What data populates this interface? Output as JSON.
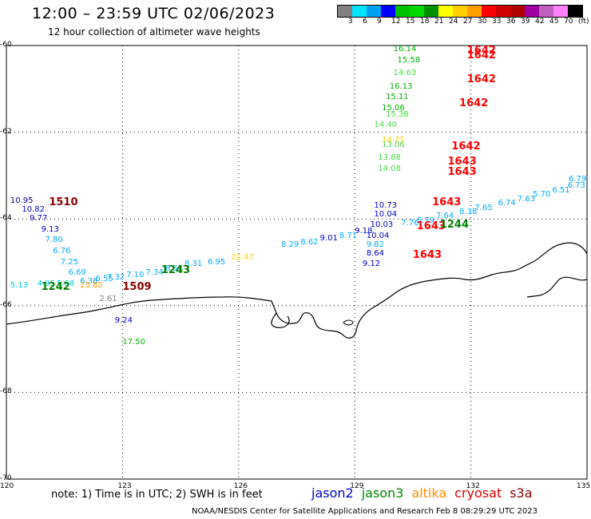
{
  "header": {
    "title": "12:00 – 23:59 UTC 02/06/2023",
    "subtitle": "12 hour collection of altimeter wave heights"
  },
  "legend": {
    "colors": [
      "#808080",
      "#00e5ff",
      "#00a0f0",
      "#0000ff",
      "#00c000",
      "#00d900",
      "#009000",
      "#ffff00",
      "#ffd000",
      "#ffa000",
      "#ff0000",
      "#d00000",
      "#b00000",
      "#a000a0",
      "#c060c0",
      "#ff80ff",
      "#000000"
    ],
    "labels": [
      "3",
      "6",
      "9",
      "12",
      "15",
      "18",
      "21",
      "24",
      "27",
      "30",
      "33",
      "36",
      "39",
      "42",
      "45",
      "70",
      "(ft)"
    ]
  },
  "map": {
    "lat_ticks": [
      "-60",
      "-62",
      "-64",
      "-66",
      "-68",
      "-70"
    ],
    "lon_ticks": [
      "120",
      "123",
      "126",
      "129",
      "132",
      "135"
    ],
    "observations": [
      {
        "text": "10.95",
        "color": "#00008b",
        "lon": 120.1,
        "lat": -63.6
      },
      {
        "text": "10.82",
        "color": "#0000cd",
        "lon": 120.4,
        "lat": -63.8
      },
      {
        "text": "9.77",
        "color": "#0000cd",
        "lon": 120.6,
        "lat": -64.0
      },
      {
        "text": "9.13",
        "color": "#0000cd",
        "lon": 120.9,
        "lat": -64.25
      },
      {
        "text": "7.80",
        "color": "#00aaff",
        "lon": 121.0,
        "lat": -64.5
      },
      {
        "text": "6.76",
        "color": "#00aaff",
        "lon": 121.2,
        "lat": -64.75
      },
      {
        "text": "7.25",
        "color": "#00aaff",
        "lon": 121.4,
        "lat": -65.0
      },
      {
        "text": "6.69",
        "color": "#00aaff",
        "lon": 121.6,
        "lat": -65.25
      },
      {
        "text": "6.36",
        "color": "#00aaff",
        "lon": 121.9,
        "lat": -65.45
      },
      {
        "text": "5.68",
        "color": "#00ccdd",
        "lon": 121.3,
        "lat": -65.5
      },
      {
        "text": "6.55",
        "color": "#00aaff",
        "lon": 122.3,
        "lat": -65.4
      },
      {
        "text": "7.32",
        "color": "#00aaff",
        "lon": 122.6,
        "lat": -65.35
      },
      {
        "text": "7.10",
        "color": "#00aaff",
        "lon": 123.1,
        "lat": -65.3
      },
      {
        "text": "7.34",
        "color": "#00aaff",
        "lon": 123.6,
        "lat": -65.25
      },
      {
        "text": "6.54",
        "color": "#00aaff",
        "lon": 124.1,
        "lat": -65.15
      },
      {
        "text": "8.31",
        "color": "#00aaff",
        "lon": 124.6,
        "lat": -65.05
      },
      {
        "text": "6.95",
        "color": "#00aaff",
        "lon": 125.2,
        "lat": -65.0
      },
      {
        "text": "22.47",
        "color": "#ffd000",
        "lon": 125.8,
        "lat": -64.9
      },
      {
        "text": "5.13",
        "color": "#00ccdd",
        "lon": 120.1,
        "lat": -65.55
      },
      {
        "text": "4.95",
        "color": "#00ccdd",
        "lon": 120.8,
        "lat": -65.5
      },
      {
        "text": "25.85",
        "color": "#ffa000",
        "lon": 121.9,
        "lat": -65.55
      },
      {
        "text": "2.61",
        "color": "#808080",
        "lon": 122.4,
        "lat": -65.85
      },
      {
        "text": "9.24",
        "color": "#0000cd",
        "lon": 122.8,
        "lat": -66.35
      },
      {
        "text": "17.50",
        "color": "#00b000",
        "lon": 123.0,
        "lat": -66.85
      },
      {
        "text": "8.29",
        "color": "#00aaff",
        "lon": 127.1,
        "lat": -64.6
      },
      {
        "text": "8.62",
        "color": "#00aaff",
        "lon": 127.6,
        "lat": -64.55
      },
      {
        "text": "9.01",
        "color": "#0000cd",
        "lon": 128.1,
        "lat": -64.45
      },
      {
        "text": "8.71",
        "color": "#00aaff",
        "lon": 128.6,
        "lat": -64.4
      },
      {
        "text": "9.18",
        "color": "#0000cd",
        "lon": 129.0,
        "lat": -64.3
      },
      {
        "text": "10.03",
        "color": "#0000cd",
        "lon": 129.4,
        "lat": -64.15
      },
      {
        "text": "10.73",
        "color": "#0000cd",
        "lon": 129.5,
        "lat": -63.7
      },
      {
        "text": "10.04",
        "color": "#0000cd",
        "lon": 129.5,
        "lat": -63.9
      },
      {
        "text": "10.04",
        "color": "#0000cd",
        "lon": 129.3,
        "lat": -64.4
      },
      {
        "text": "9.82",
        "color": "#00aaff",
        "lon": 129.3,
        "lat": -64.6
      },
      {
        "text": "8.64",
        "color": "#0000cd",
        "lon": 129.3,
        "lat": -64.8
      },
      {
        "text": "9.12",
        "color": "#0000cd",
        "lon": 129.2,
        "lat": -65.05
      },
      {
        "text": "7.76",
        "color": "#00aaff",
        "lon": 130.2,
        "lat": -64.1
      },
      {
        "text": "6.79",
        "color": "#00aaff",
        "lon": 130.6,
        "lat": -64.05
      },
      {
        "text": "7.64",
        "color": "#00aaff",
        "lon": 131.1,
        "lat": -63.95
      },
      {
        "text": "8.38",
        "color": "#00aaff",
        "lon": 131.7,
        "lat": -63.85
      },
      {
        "text": "7.65",
        "color": "#00aaff",
        "lon": 132.1,
        "lat": -63.75
      },
      {
        "text": "6.74",
        "color": "#00aaff",
        "lon": 132.7,
        "lat": -63.65
      },
      {
        "text": "7.63",
        "color": "#00aaff",
        "lon": 133.2,
        "lat": -63.55
      },
      {
        "text": "5.70",
        "color": "#00aaff",
        "lon": 133.6,
        "lat": -63.45
      },
      {
        "text": "6.51",
        "color": "#00aaff",
        "lon": 134.1,
        "lat": -63.35
      },
      {
        "text": "6.73",
        "color": "#00aaff",
        "lon": 134.5,
        "lat": -63.25
      },
      {
        "text": "6.79",
        "color": "#00aaff",
        "lon": 134.9,
        "lat": -63.1
      },
      {
        "text": "16.14",
        "color": "#00b000",
        "lon": 130.0,
        "lat": -60.1
      },
      {
        "text": "15.58",
        "color": "#00b000",
        "lon": 130.1,
        "lat": -60.35
      },
      {
        "text": "14.63",
        "color": "#44dd44",
        "lon": 130.0,
        "lat": -60.65
      },
      {
        "text": "16.13",
        "color": "#00b000",
        "lon": 129.9,
        "lat": -60.95
      },
      {
        "text": "15.11",
        "color": "#00b000",
        "lon": 129.8,
        "lat": -61.2
      },
      {
        "text": "15.06",
        "color": "#00b000",
        "lon": 129.7,
        "lat": -61.45
      },
      {
        "text": "15.38",
        "color": "#44dd44",
        "lon": 129.8,
        "lat": -61.6
      },
      {
        "text": "14.40",
        "color": "#44dd44",
        "lon": 129.5,
        "lat": -61.85
      },
      {
        "text": "14.21",
        "color": "#ffd000",
        "lon": 129.7,
        "lat": -62.2
      },
      {
        "text": "13.06",
        "color": "#44dd44",
        "lon": 129.7,
        "lat": -62.3
      },
      {
        "text": "13.88",
        "color": "#44dd44",
        "lon": 129.6,
        "lat": -62.6
      },
      {
        "text": "14.08",
        "color": "#44dd44",
        "lon": 129.6,
        "lat": -62.85
      }
    ],
    "passes": [
      {
        "text": "1642",
        "color": "#ff0000",
        "lon": 131.9,
        "lat": -60.1
      },
      {
        "text": "1642",
        "color": "#ff0000",
        "lon": 131.9,
        "lat": -60.2
      },
      {
        "text": "1642",
        "color": "#ff0000",
        "lon": 131.9,
        "lat": -60.75
      },
      {
        "text": "1642",
        "color": "#ff0000",
        "lon": 131.7,
        "lat": -61.3
      },
      {
        "text": "1642",
        "color": "#ff0000",
        "lon": 131.5,
        "lat": -62.3
      },
      {
        "text": "1643",
        "color": "#ff0000",
        "lon": 131.4,
        "lat": -62.65
      },
      {
        "text": "1643",
        "color": "#ff0000",
        "lon": 131.4,
        "lat": -62.9
      },
      {
        "text": "1643",
        "color": "#ff0000",
        "lon": 131.0,
        "lat": -63.6
      },
      {
        "text": "1643",
        "color": "#ff0000",
        "lon": 130.6,
        "lat": -64.15
      },
      {
        "text": "1643",
        "color": "#ff0000",
        "lon": 130.5,
        "lat": -64.8
      },
      {
        "text": "1244",
        "color": "#008000",
        "lon": 131.2,
        "lat": -64.1
      },
      {
        "text": "1510",
        "color": "#8b0000",
        "lon": 121.1,
        "lat": -63.6
      },
      {
        "text": "1243",
        "color": "#008000",
        "lon": 124.0,
        "lat": -65.15
      },
      {
        "text": "1242",
        "color": "#008000",
        "lon": 120.9,
        "lat": -65.55
      },
      {
        "text": "1509",
        "color": "#8b0000",
        "lon": 123.0,
        "lat": -65.55
      }
    ]
  },
  "bottom": {
    "note": "note: 1) Time is in UTC; 2) SWH is in feet",
    "satellites": [
      {
        "name": "jason2",
        "color": "#0000cc"
      },
      {
        "name": "jason3",
        "color": "#008800"
      },
      {
        "name": "altika",
        "color": "#ff8c00"
      },
      {
        "name": "cryosat",
        "color": "#dd0000"
      },
      {
        "name": "s3a",
        "color": "#8b0000"
      }
    ],
    "footer": "NOAA/NESDIS Center for Satellite Applications and Research   Feb  8 08:29:29 UTC 2023"
  }
}
